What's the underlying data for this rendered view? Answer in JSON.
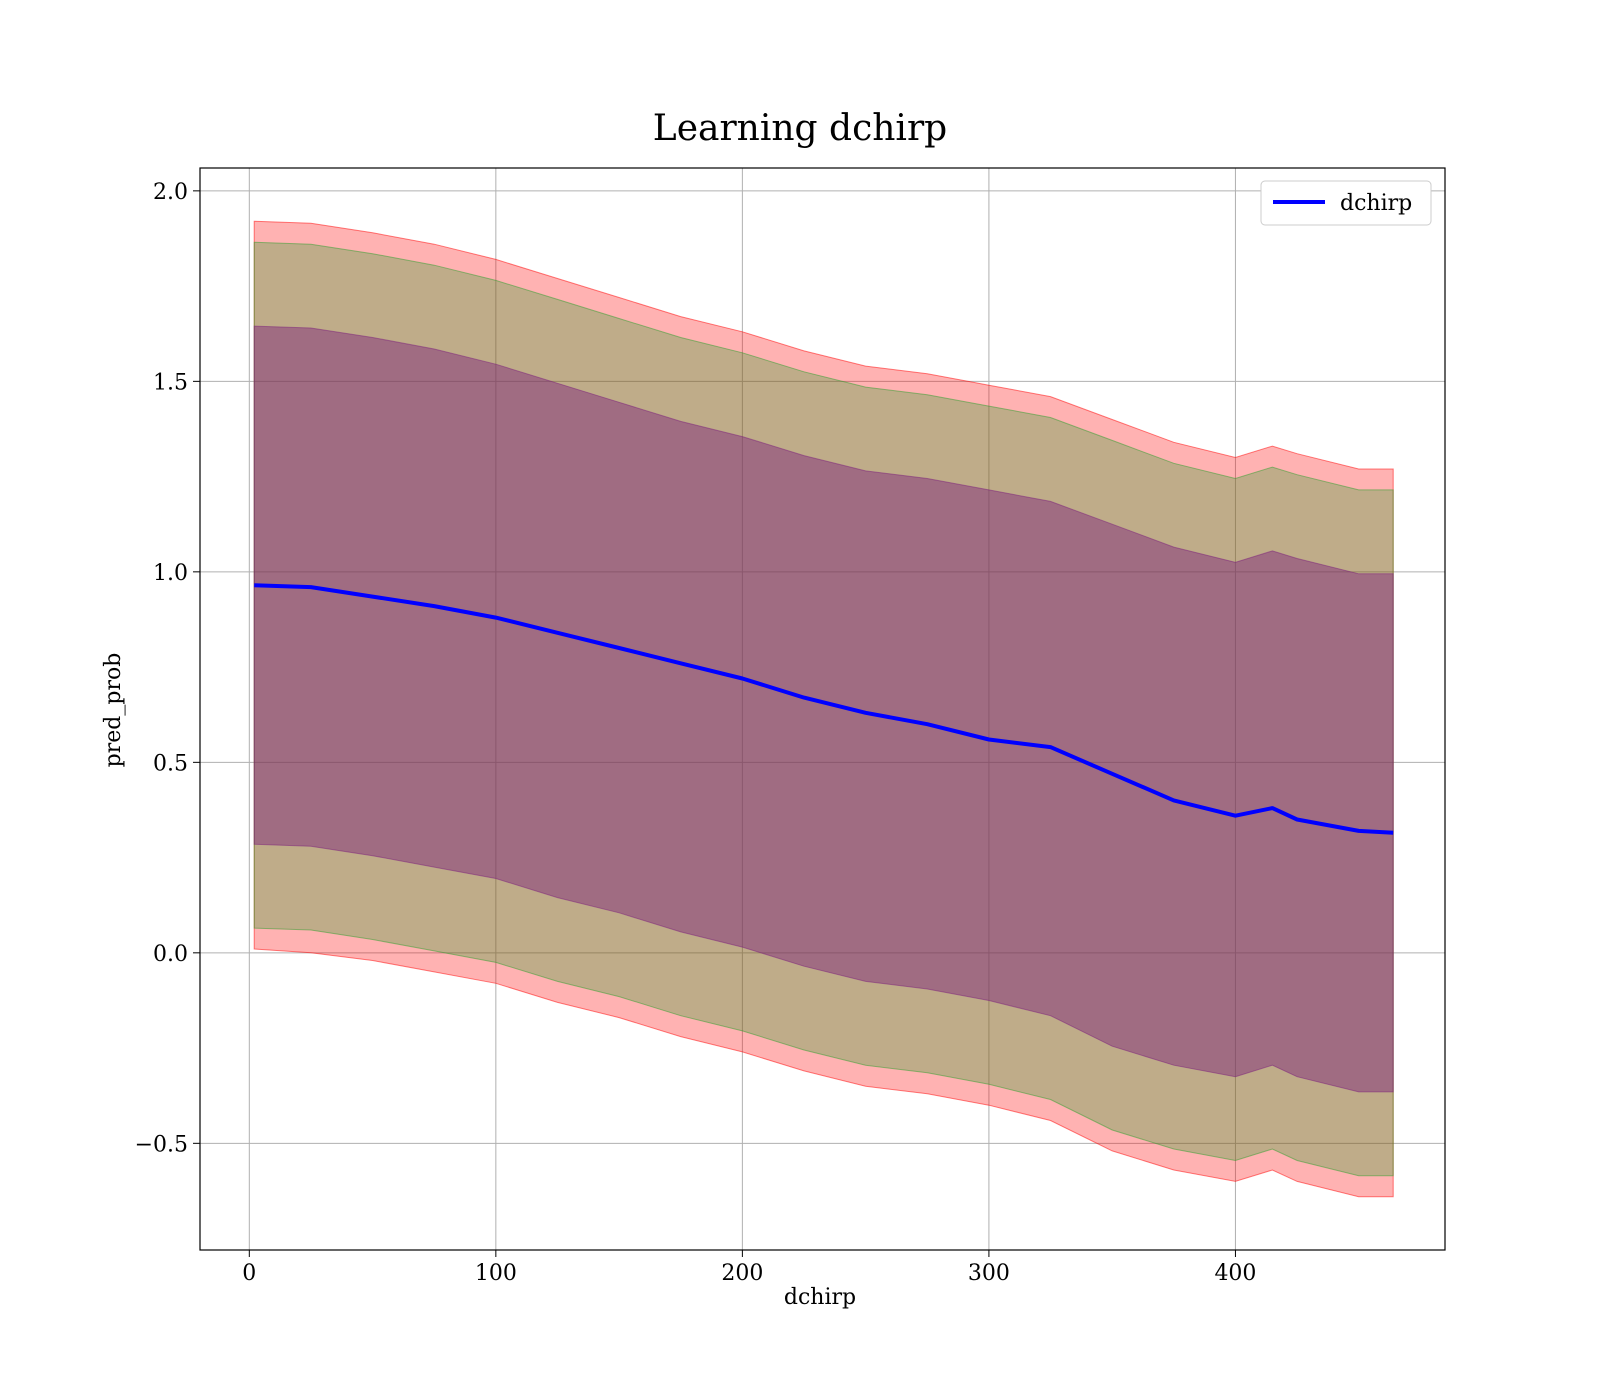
{
  "chart_data": {
    "type": "line",
    "title": "Learning dchirp",
    "xlabel": "dchirp",
    "ylabel": "pred_prob",
    "xlim": [
      -20,
      485
    ],
    "ylim": [
      -0.78,
      2.06
    ],
    "xticks": [
      0,
      100,
      200,
      300,
      400
    ],
    "yticks": [
      -0.5,
      0.0,
      0.5,
      1.0,
      1.5,
      2.0
    ],
    "xtick_labels": [
      "0",
      "100",
      "200",
      "300",
      "400"
    ],
    "ytick_labels": [
      "−0.5",
      "0.0",
      "0.5",
      "1.0",
      "1.5",
      "2.0"
    ],
    "grid": true,
    "legend_position": "top-right",
    "x": [
      2,
      25,
      50,
      75,
      100,
      125,
      150,
      175,
      200,
      225,
      250,
      275,
      300,
      325,
      350,
      375,
      400,
      415,
      425,
      450,
      464
    ],
    "series": [
      {
        "name": "dchirp",
        "color": "#0000ff",
        "values": [
          0.965,
          0.96,
          0.935,
          0.91,
          0.88,
          0.84,
          0.8,
          0.76,
          0.72,
          0.67,
          0.63,
          0.6,
          0.56,
          0.54,
          0.47,
          0.4,
          0.36,
          0.38,
          0.35,
          0.32,
          0.315
        ]
      }
    ],
    "bands": [
      {
        "label": "",
        "color": "#ff0000",
        "opacity": 0.3,
        "upper": [
          1.92,
          1.915,
          1.89,
          1.86,
          1.82,
          1.77,
          1.72,
          1.67,
          1.63,
          1.58,
          1.54,
          1.52,
          1.49,
          1.46,
          1.4,
          1.34,
          1.3,
          1.33,
          1.31,
          1.27,
          1.27
        ],
        "lower": [
          0.01,
          0.0,
          -0.02,
          -0.05,
          -0.08,
          -0.13,
          -0.17,
          -0.22,
          -0.26,
          -0.31,
          -0.35,
          -0.37,
          -0.4,
          -0.44,
          -0.52,
          -0.57,
          -0.6,
          -0.57,
          -0.6,
          -0.64,
          -0.64
        ]
      },
      {
        "label": "",
        "color": "#2ca02c",
        "opacity": 0.3,
        "upper": [
          1.865,
          1.86,
          1.835,
          1.805,
          1.765,
          1.715,
          1.665,
          1.615,
          1.575,
          1.525,
          1.485,
          1.465,
          1.435,
          1.405,
          1.345,
          1.285,
          1.245,
          1.275,
          1.255,
          1.215,
          1.215
        ],
        "lower": [
          0.065,
          0.06,
          0.035,
          0.005,
          -0.025,
          -0.075,
          -0.115,
          -0.165,
          -0.205,
          -0.255,
          -0.295,
          -0.315,
          -0.345,
          -0.385,
          -0.465,
          -0.515,
          -0.545,
          -0.515,
          -0.545,
          -0.585,
          -0.585
        ]
      },
      {
        "label": "",
        "color": "#7b1f7b",
        "opacity": 0.45,
        "upper": [
          1.645,
          1.64,
          1.615,
          1.585,
          1.545,
          1.495,
          1.445,
          1.395,
          1.355,
          1.305,
          1.265,
          1.245,
          1.215,
          1.185,
          1.125,
          1.065,
          1.025,
          1.055,
          1.035,
          0.995,
          0.995
        ],
        "lower": [
          0.285,
          0.28,
          0.255,
          0.225,
          0.195,
          0.145,
          0.105,
          0.055,
          0.015,
          -0.035,
          -0.075,
          -0.095,
          -0.125,
          -0.165,
          -0.245,
          -0.295,
          -0.325,
          -0.295,
          -0.325,
          -0.365,
          -0.365
        ]
      }
    ]
  }
}
